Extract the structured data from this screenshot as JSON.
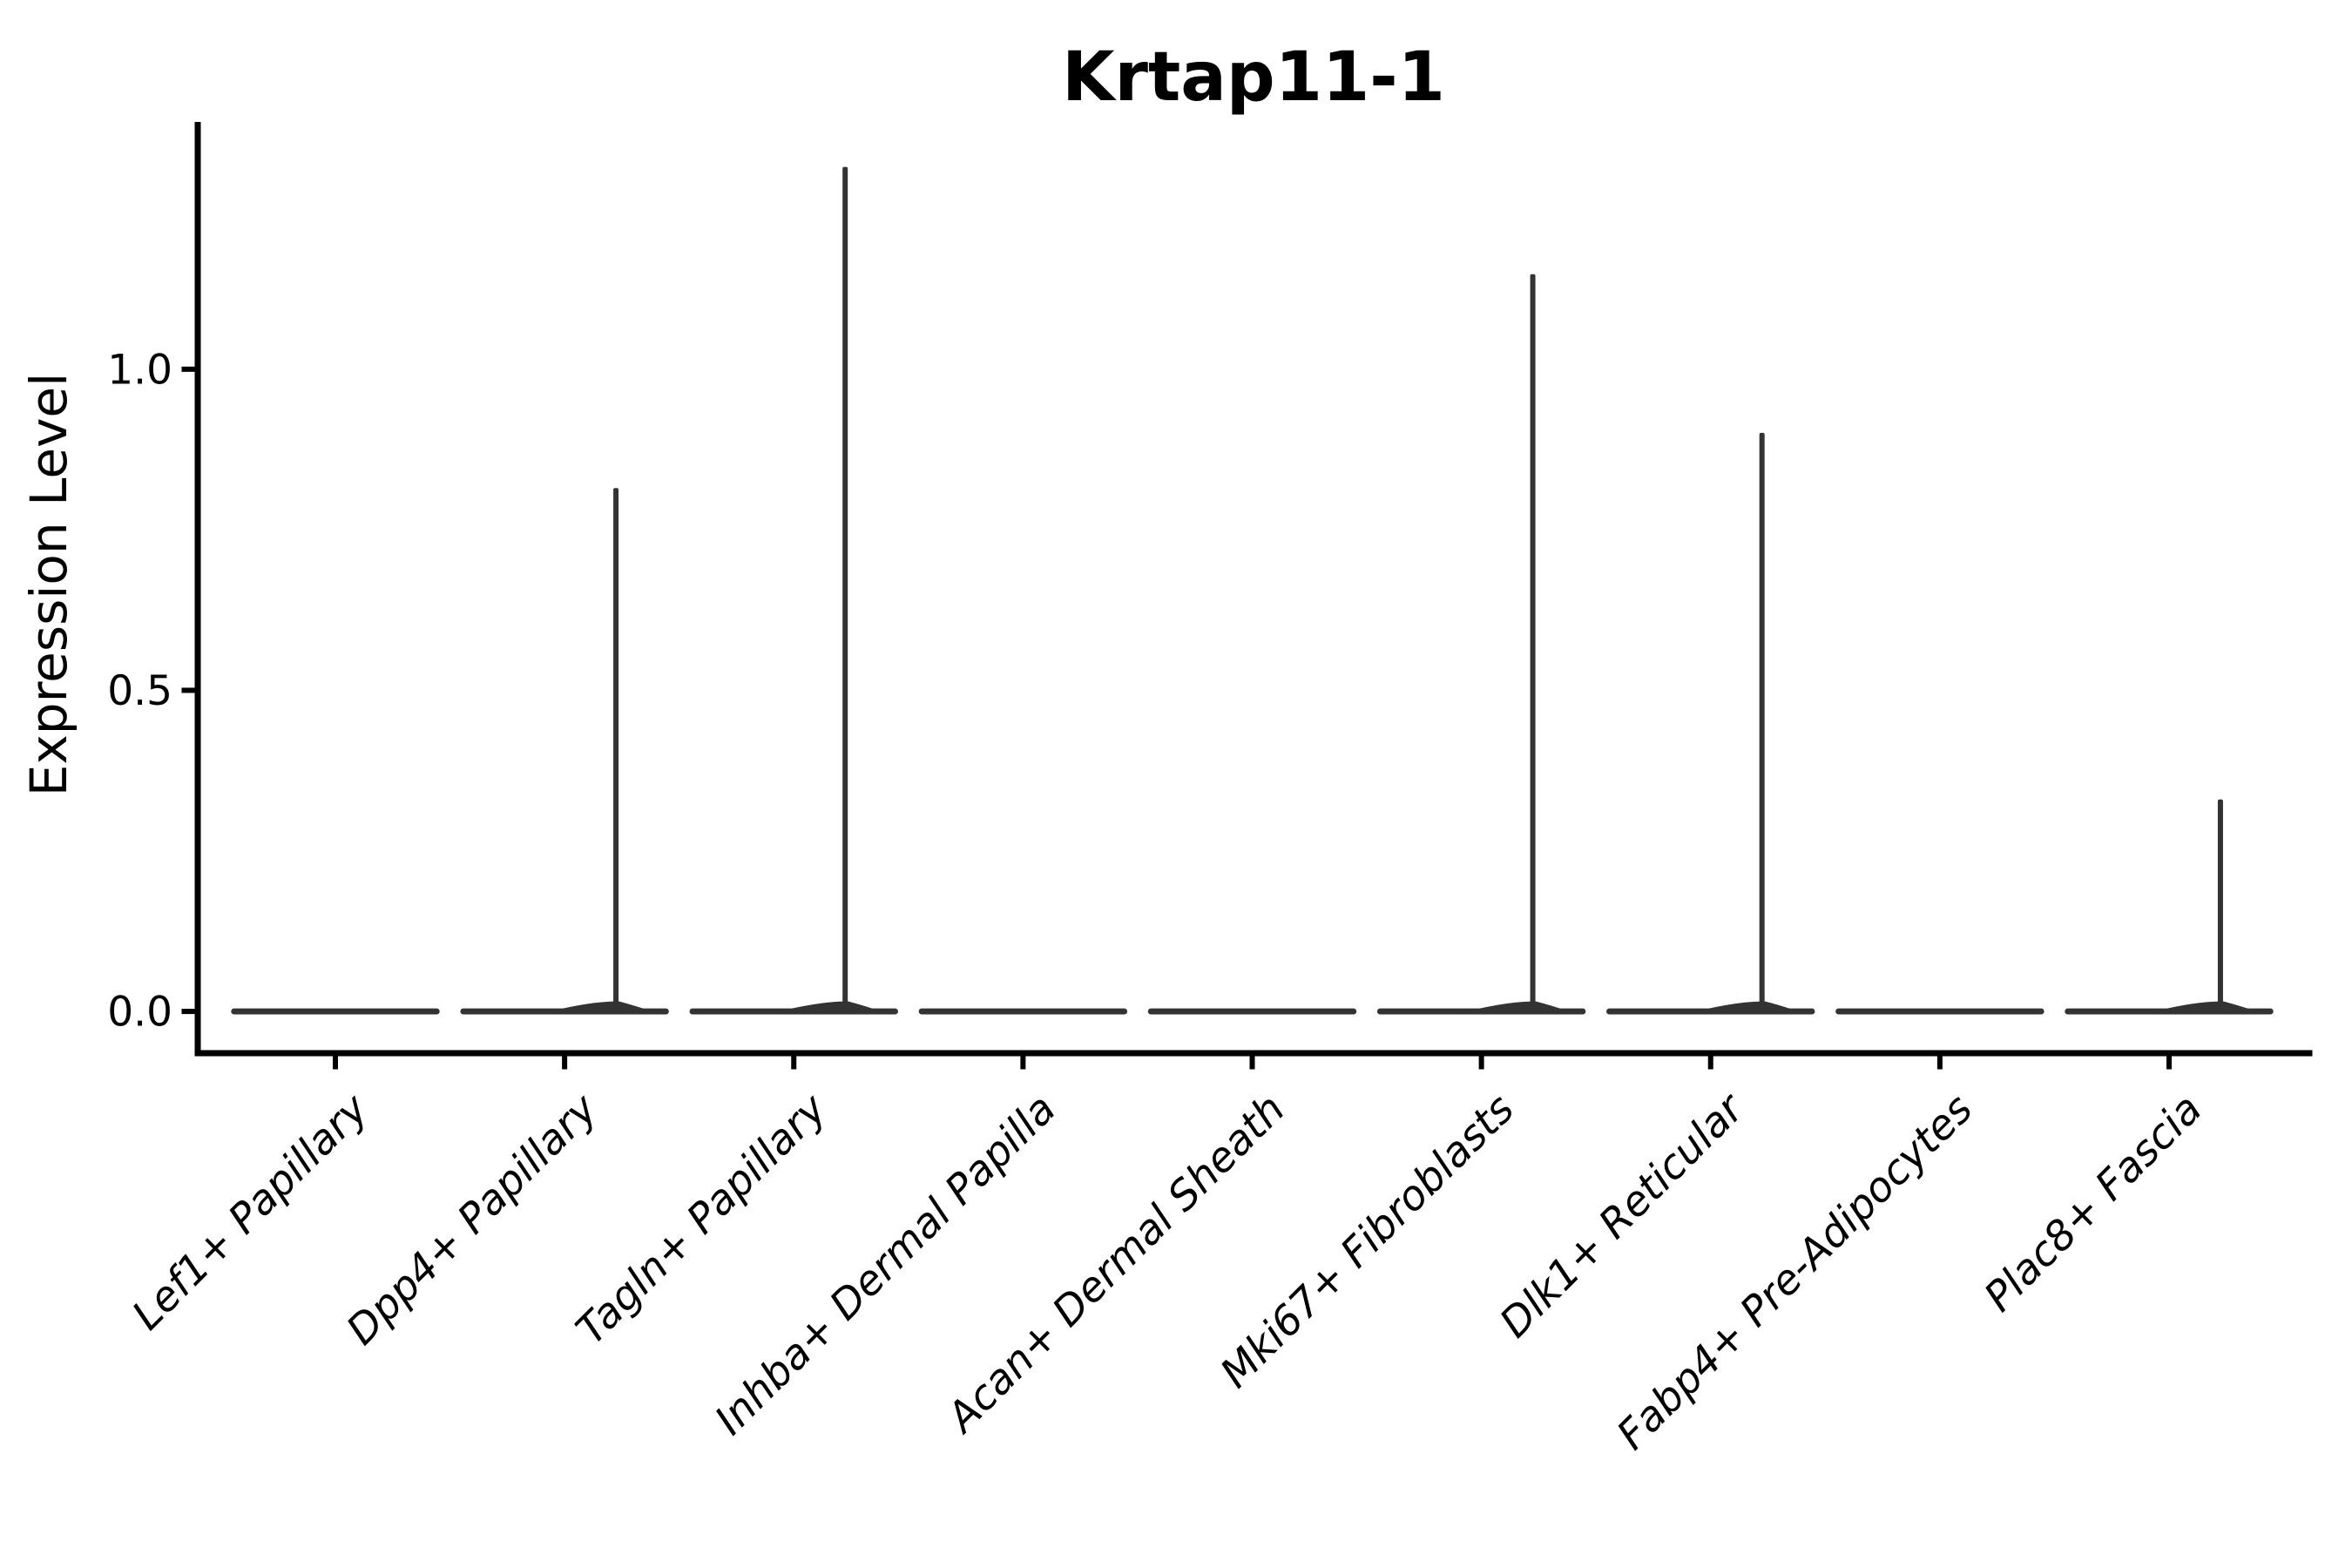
{
  "figure": {
    "background": "#ffffff"
  },
  "chart_data": {
    "type": "violin",
    "title": "Krtap11-1",
    "ylabel": "Expression Level",
    "xlabel": "",
    "categories": [
      "Lef1+ Papillary",
      "Dpp4+ Papillary",
      "Tagln+ Papillary",
      "Inhba+ Dermal Papilla",
      "Acan+ Dermal Sheath",
      "Mki67+ Fibroblasts",
      "Dlk1+ Reticular",
      "Fabp4+ Pre-Adipocytes",
      "Plac8+ Fascia"
    ],
    "series": [
      {
        "name": "violin_max_expression",
        "values": [
          0,
          0.815,
          1.315,
          0,
          0,
          1.148,
          0.901,
          0,
          0.33
        ]
      }
    ],
    "body_value": 0.0,
    "yticks": {
      "values": [
        0.0,
        0.5,
        1.0
      ],
      "labels": [
        "0.0",
        "0.5",
        "1.0"
      ]
    },
    "ylim": [
      -0.065,
      1.385
    ],
    "grid": false,
    "legend": "none",
    "layout": {
      "xlabel_rotation_deg": 45,
      "xlabel_font_style": "italic",
      "title_bold": true,
      "violin_width_frac": 0.91,
      "spike_x_offset_frac": 0.224,
      "spines": [
        "left",
        "bottom"
      ]
    },
    "colors": {
      "violin": "#333333",
      "axis": "#000000",
      "text": "#000000",
      "background": "#ffffff"
    }
  }
}
